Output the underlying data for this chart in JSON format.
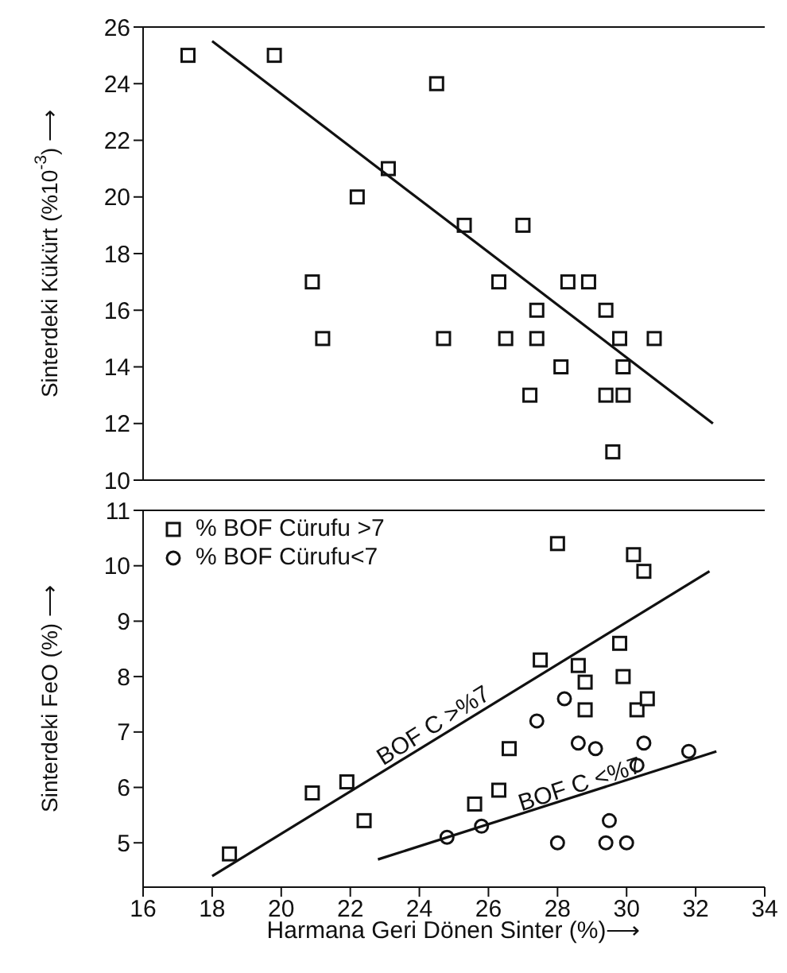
{
  "chart_data": [
    {
      "type": "scatter",
      "ylabel": "Sinterdeki Kükürt (%10$^{-3}$) ⟶",
      "xlim": [
        16,
        34
      ],
      "xticks": [
        16,
        18,
        20,
        22,
        24,
        26,
        28,
        30,
        32,
        34
      ],
      "ylim": [
        10,
        26
      ],
      "yticks": [
        10,
        12,
        14,
        16,
        18,
        20,
        22,
        24,
        26
      ],
      "tick_labels": "y",
      "grid": false,
      "legend": false,
      "series": [
        {
          "marker": "square",
          "color": "#111111",
          "x": [
            17.3,
            19.8,
            24.5,
            23.1,
            22.2,
            25.3,
            27.0,
            20.9,
            21.2,
            24.7,
            26.3,
            26.5,
            27.4,
            27.4,
            28.3,
            28.9,
            29.4,
            29.8,
            30.8,
            28.1,
            29.9,
            27.2,
            29.4,
            29.9,
            29.6
          ],
          "values": [
            25,
            25,
            24,
            21,
            20,
            19,
            19,
            17,
            15,
            15,
            17,
            15,
            15,
            16,
            17,
            17,
            16,
            15,
            15,
            14,
            14,
            13,
            13,
            13,
            11
          ]
        },
        {
          "type": "line",
          "marker": "none",
          "color": "#111111",
          "x": [
            18.0,
            32.5
          ],
          "values": [
            25.5,
            12.0
          ]
        }
      ]
    },
    {
      "type": "scatter",
      "xlabel": "Harmana Geri Dönen Sinter (%)⟶",
      "ylabel": "Sinterdeki FeO (%) ⟶",
      "xlim": [
        16,
        34
      ],
      "xticks": [
        16,
        18,
        20,
        22,
        24,
        26,
        28,
        30,
        32,
        34
      ],
      "ylim": [
        4.2,
        11
      ],
      "yticks": [
        5,
        6,
        7,
        8,
        9,
        10,
        11
      ],
      "grid": false,
      "legend": "top left",
      "annotations": [
        "BOF C >%7",
        "BOF C <%7"
      ],
      "series": [
        {
          "name": "% BOF Cürufu >7",
          "marker": "square",
          "color": "#111111",
          "x": [
            28.0,
            30.2,
            30.5,
            29.8,
            27.5,
            28.6,
            28.8,
            29.9,
            28.8,
            30.3,
            30.6,
            26.6,
            20.9,
            21.9,
            22.4,
            26.3,
            25.6,
            18.5
          ],
          "values": [
            10.4,
            10.2,
            9.9,
            8.6,
            8.3,
            8.2,
            7.9,
            8.0,
            7.4,
            7.4,
            7.6,
            6.7,
            5.9,
            6.1,
            5.4,
            5.95,
            5.7,
            4.8
          ]
        },
        {
          "name": "% BOF Cürufu<7",
          "marker": "circle",
          "color": "#111111",
          "x": [
            28.2,
            27.4,
            28.6,
            29.1,
            30.5,
            31.8,
            30.3,
            29.5,
            28.0,
            29.4,
            30.0,
            24.8,
            25.8
          ],
          "values": [
            7.6,
            7.2,
            6.8,
            6.7,
            6.8,
            6.65,
            6.4,
            5.4,
            5.0,
            5.0,
            5.0,
            5.1,
            5.3
          ]
        },
        {
          "type": "line",
          "marker": "none",
          "color": "#111111",
          "x": [
            18.0,
            32.4
          ],
          "values": [
            4.4,
            9.9
          ]
        },
        {
          "type": "line",
          "marker": "none",
          "color": "#111111",
          "x": [
            22.8,
            32.6
          ],
          "values": [
            4.7,
            6.65
          ]
        }
      ]
    }
  ]
}
